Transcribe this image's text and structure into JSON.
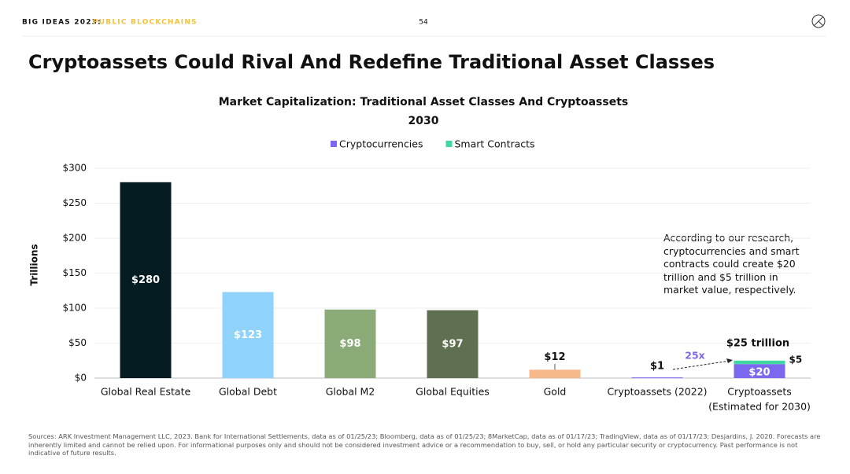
{
  "header": {
    "series_name": "BIG IDEAS 2023:",
    "section": "PUBLIC BLOCKCHAINS",
    "page": "54"
  },
  "headline": "Cryptoassets Could Rival And Redefine Traditional Asset Classes",
  "chart_data": {
    "type": "bar",
    "title": "Market Capitalization: Traditional Asset Classes And Cryptoassets",
    "subtitle": "2030",
    "y_label": "Trillions",
    "categories": [
      "Global Real Estate",
      "Global Debt",
      "Global M2",
      "Global Equities",
      "Gold",
      "Cryptoassets (2022)",
      "Cryptoassets"
    ],
    "category_note": "(Estimated for 2030)",
    "values": [
      280,
      123,
      98,
      97,
      12,
      1,
      null
    ],
    "value_labels": [
      "$280",
      "$123",
      "$98",
      "$97",
      "$12",
      "$1",
      null
    ],
    "colors": [
      "#041c22",
      "#8fd3fa",
      "#8aab78",
      "#5f7050",
      "#f8b98a",
      "#7b68ee",
      null
    ],
    "series": [
      {
        "name": "Cryptocurrencies",
        "color": "#7b68ee",
        "values": [
          null,
          null,
          null,
          null,
          null,
          null,
          20
        ],
        "value_labels": [
          null,
          null,
          null,
          null,
          null,
          null,
          "$20"
        ]
      },
      {
        "name": "Smart Contracts",
        "color": "#40d8a0",
        "values": [
          null,
          null,
          null,
          null,
          null,
          null,
          5
        ],
        "value_labels": [
          null,
          null,
          null,
          null,
          null,
          null,
          "$5"
        ]
      }
    ],
    "ylim": [
      0,
      300
    ],
    "yticks": [
      {
        "value": 0,
        "label": "$0"
      },
      {
        "value": 50,
        "label": "$50"
      },
      {
        "value": 100,
        "label": "$100"
      },
      {
        "value": 150,
        "label": "$150"
      },
      {
        "value": 200,
        "label": "$200"
      },
      {
        "value": 250,
        "label": "$250"
      },
      {
        "value": 300,
        "label": "$300"
      }
    ],
    "grid": true,
    "annotations": {
      "note": "According to our research, cryptocurrencies and smart contracts could create $20 trillion and $5 trillion in market value, respectively.",
      "multiplier": "25x",
      "total": "$25 trillion"
    }
  },
  "sources": "Sources: ARK Investment Management LLC, 2023. Bank for International Settlements, data as of 01/25/23; Bloomberg, data as of 01/25/23; 8MarketCap, data as of 01/17/23; TradingView, data as of 01/17/23; Desjardins, J. 2020. Forecasts are inherently limited and cannot be relied upon. For informational purposes only and should not be considered investment advice or a recommendation to buy, sell, or hold any particular security or cryptocurrency. Past performance is not indicative of future results."
}
